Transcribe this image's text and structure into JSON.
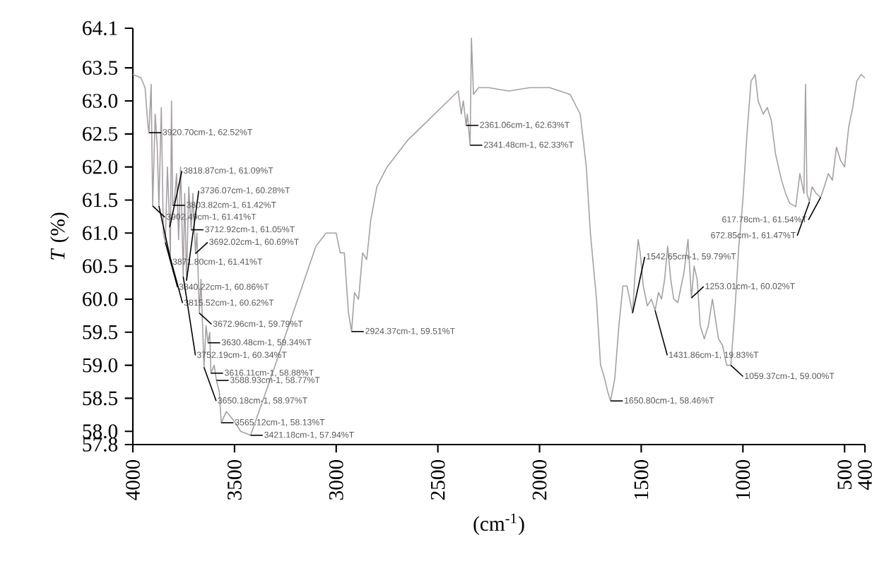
{
  "chart_data": {
    "type": "line",
    "xlabel": "(cm$^{-1}$)",
    "ylabel": "*T* (%)",
    "xlim": [
      4000,
      400
    ],
    "ylim": [
      57.8,
      64.1
    ],
    "xticks": [
      4000,
      3500,
      3000,
      2500,
      2000,
      1500,
      1000,
      500,
      400
    ],
    "yticks": [
      57.8,
      {
        "value": 58,
        "label": "58.0"
      },
      58.5,
      {
        "value": 59,
        "label": "59.0"
      },
      59.5,
      {
        "value": 60,
        "label": "60.0"
      },
      60.5,
      {
        "value": 61,
        "label": "61.0"
      },
      61.5,
      {
        "value": 62,
        "label": "62.0"
      },
      62.5,
      {
        "value": 63,
        "label": "63.0"
      },
      63.5,
      64.1
    ],
    "x": [
      4000,
      3960,
      3940,
      3925,
      3920.7,
      3910,
      3902.49,
      3890,
      3880,
      3871.8,
      3860,
      3850,
      3840.22,
      3830,
      3818.87,
      3815.52,
      3810,
      3803.82,
      3795,
      3785,
      3775,
      3765,
      3752.19,
      3745,
      3736.07,
      3725,
      3712.92,
      3705,
      3692.02,
      3685,
      3672.96,
      3665,
      3650.18,
      3640,
      3630.48,
      3622,
      3616.11,
      3600,
      3588.93,
      3575,
      3565.12,
      3540,
      3500,
      3470,
      3421.18,
      3380,
      3300,
      3200,
      3100,
      3050,
      3000,
      2980,
      2960,
      2940,
      2924.37,
      2910,
      2890,
      2870,
      2850,
      2830,
      2800,
      2750,
      2650,
      2550,
      2450,
      2400,
      2385,
      2375,
      2361.06,
      2355,
      2341.48,
      2335,
      2325,
      2300,
      2250,
      2150,
      2050,
      1950,
      1850,
      1800,
      1770,
      1750,
      1720,
      1700,
      1680,
      1665,
      1650.8,
      1630,
      1610,
      1590,
      1570,
      1550,
      1542.65,
      1530,
      1515,
      1505,
      1490,
      1470,
      1450,
      1431.86,
      1415,
      1400,
      1385,
      1370,
      1355,
      1340,
      1320,
      1290,
      1270,
      1253.01,
      1240,
      1225,
      1210,
      1190,
      1170,
      1150,
      1120,
      1100,
      1080,
      1059.37,
      1040,
      1020,
      1000,
      980,
      960,
      940,
      925,
      900,
      880,
      860,
      840,
      810,
      790,
      770,
      740,
      720,
      700,
      692,
      685,
      672.85,
      660,
      640,
      617.78,
      600,
      580,
      560,
      540,
      520,
      500,
      480,
      460,
      440,
      420,
      400
    ],
    "series": [
      {
        "color": "#a6a0a4",
        "values": [
          63.4,
          63.35,
          63.2,
          62.6,
          62.52,
          63.25,
          61.41,
          62.8,
          62.3,
          61.41,
          62.9,
          61.0,
          60.86,
          62.0,
          61.09,
          60.62,
          63.0,
          61.42,
          61.5,
          61.9,
          60.9,
          62.0,
          60.34,
          61.6,
          60.28,
          61.7,
          61.05,
          61.6,
          60.69,
          61.0,
          59.79,
          60.3,
          58.97,
          59.6,
          59.34,
          59.5,
          58.88,
          59.0,
          58.77,
          58.6,
          58.13,
          58.3,
          58.15,
          58.0,
          57.94,
          58.3,
          59.0,
          59.9,
          60.8,
          61.0,
          61.0,
          60.7,
          60.7,
          59.8,
          59.51,
          60.1,
          60.0,
          60.7,
          60.6,
          61.2,
          61.7,
          62.0,
          62.4,
          62.7,
          63.0,
          63.15,
          62.8,
          63.0,
          62.63,
          62.8,
          62.33,
          63.95,
          63.1,
          63.2,
          63.2,
          63.15,
          63.2,
          63.2,
          63.1,
          62.8,
          62.0,
          61.0,
          60.0,
          59.0,
          58.8,
          58.6,
          58.46,
          58.8,
          59.6,
          60.2,
          60.2,
          59.9,
          59.79,
          60.4,
          60.9,
          60.7,
          60.2,
          59.9,
          60.0,
          59.83,
          60.1,
          60.0,
          60.3,
          60.8,
          60.3,
          60.0,
          59.95,
          60.4,
          60.9,
          60.02,
          60.5,
          60.3,
          59.6,
          59.4,
          59.6,
          60.0,
          59.4,
          59.3,
          59.0,
          59.0,
          59.8,
          60.8,
          61.5,
          62.5,
          63.3,
          63.4,
          63.0,
          62.8,
          62.9,
          62.7,
          62.2,
          61.8,
          61.6,
          61.45,
          61.4,
          61.9,
          61.6,
          63.25,
          61.6,
          61.47,
          61.7,
          61.6,
          61.54,
          61.7,
          61.9,
          61.8,
          62.3,
          62.1,
          62.0,
          62.6,
          62.9,
          63.3,
          63.4,
          63.35
        ]
      }
    ],
    "annotations": [
      {
        "text": "3920.70cm-1, 62.52%T",
        "x": 3920.7,
        "y": 62.52
      },
      {
        "text": "3818.87cm-1, 61.09%T",
        "x": 3818.87,
        "y": 61.09
      },
      {
        "text": "3803.82cm-1, 61.42%T",
        "x": 3803.82,
        "y": 61.42
      },
      {
        "text": "3902.49cm-1, 61.41%T",
        "x": 3902.49,
        "y": 61.41
      },
      {
        "text": "3871.80cm-1, 61.41%T",
        "x": 3871.8,
        "y": 61.41
      },
      {
        "text": "3712.92cm-1, 61.05%T",
        "x": 3712.92,
        "y": 61.05
      },
      {
        "text": "3840.22cm-1, 60.86%T",
        "x": 3840.22,
        "y": 60.86
      },
      {
        "text": "3815.52cm-1, 60.62%T",
        "x": 3815.52,
        "y": 60.62
      },
      {
        "text": "3692.02cm-1, 60.69%T",
        "x": 3692.02,
        "y": 60.69
      },
      {
        "text": "3736.07cm-1, 60.28%T",
        "x": 3736.07,
        "y": 60.28
      },
      {
        "text": "3752.19cm-1, 60.34%T",
        "x": 3752.19,
        "y": 60.34
      },
      {
        "text": "3672.96cm-1, 59.79%T",
        "x": 3672.96,
        "y": 59.79
      },
      {
        "text": "3630.48cm-1, 59.34%T",
        "x": 3630.48,
        "y": 59.34
      },
      {
        "text": "3650.18cm-1, 58.97%T",
        "x": 3650.18,
        "y": 58.97
      },
      {
        "text": "3616.11cm-1, 58.88%T",
        "x": 3616.11,
        "y": 58.88
      },
      {
        "text": "3588.93cm-1, 58.77%T",
        "x": 3588.93,
        "y": 58.77
      },
      {
        "text": "3565.12cm-1, 58.13%T",
        "x": 3565.12,
        "y": 58.13
      },
      {
        "text": "3421.18cm-1, 57.94%T",
        "x": 3421.18,
        "y": 57.94
      },
      {
        "text": "2924.37cm-1, 59.51%T",
        "x": 2924.37,
        "y": 59.51
      },
      {
        "text": "2361.06cm-1, 62.63%T",
        "x": 2361.06,
        "y": 62.63
      },
      {
        "text": "2341.48cm-1, 62.33%T",
        "x": 2341.48,
        "y": 62.33
      },
      {
        "text": "1650.80cm-1, 58.46%T",
        "x": 1650.8,
        "y": 58.46
      },
      {
        "text": "1542.65cm-1, 59.79%T",
        "x": 1542.65,
        "y": 59.79
      },
      {
        "text": "1253.01cm-1, 60.02%T",
        "x": 1253.01,
        "y": 60.02
      },
      {
        "text": "1431.86cm-1, 19.83%T",
        "x": 1431.86,
        "y": 59.83
      },
      {
        "text": "1059.37cm-1, 59.00%T",
        "x": 1059.37,
        "y": 59.0
      },
      {
        "text": "672.85cm-1, 61.47%T",
        "x": 672.85,
        "y": 61.47
      },
      {
        "text": "617.78cm-1, 61.54%T",
        "x": 617.78,
        "y": 61.54
      }
    ]
  }
}
